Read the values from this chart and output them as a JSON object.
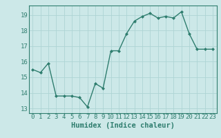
{
  "x": [
    0,
    1,
    2,
    3,
    4,
    5,
    6,
    7,
    8,
    9,
    10,
    11,
    12,
    13,
    14,
    15,
    16,
    17,
    18,
    19,
    20,
    21,
    22,
    23
  ],
  "y": [
    15.5,
    15.3,
    15.9,
    13.8,
    13.8,
    13.8,
    13.7,
    13.1,
    14.6,
    14.3,
    16.7,
    16.7,
    17.8,
    18.6,
    18.9,
    19.1,
    18.8,
    18.9,
    18.8,
    19.2,
    17.8,
    16.8,
    16.8,
    16.8
  ],
  "line_color": "#2e7d6e",
  "marker": "D",
  "marker_size": 2.0,
  "line_width": 1.0,
  "bg_color": "#cce8e8",
  "grid_color": "#aed4d4",
  "xlabel": "Humidex (Indice chaleur)",
  "xlim": [
    -0.5,
    23.5
  ],
  "ylim": [
    12.7,
    19.6
  ],
  "yticks": [
    13,
    14,
    15,
    16,
    17,
    18,
    19
  ],
  "xticks": [
    0,
    1,
    2,
    3,
    4,
    5,
    6,
    7,
    8,
    9,
    10,
    11,
    12,
    13,
    14,
    15,
    16,
    17,
    18,
    19,
    20,
    21,
    22,
    23
  ],
  "tick_label_fontsize": 6.5,
  "xlabel_fontsize": 7.5
}
